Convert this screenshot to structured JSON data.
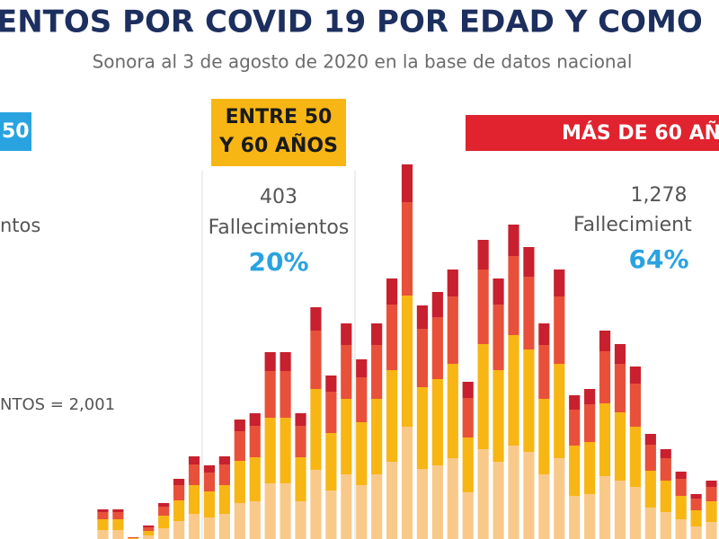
{
  "chart_data": {
    "type": "stacked_bar",
    "title": "ENTOS POR COVID 19 POR EDAD Y COMO",
    "subtitle": "Sonora al 3 de agosto de 2020 en la base de datos nacional",
    "annotations": {
      "left_box": "50",
      "middle_box": [
        "ENTRE 50",
        "Y 60 AÑOS"
      ],
      "right_box": "MÁS DE 60 AÑ",
      "left_label": "ntos",
      "total_label": "NTOS = 2,001",
      "middle_count": "403",
      "middle_label": "Fallecimientos",
      "middle_pct": "20%",
      "right_count": "1,278",
      "right_label": "Fallecimient",
      "right_pct": "64%"
    },
    "categories": [
      null,
      null,
      null,
      null,
      null,
      null,
      null,
      null,
      null,
      null,
      null,
      null,
      null,
      null,
      null,
      null,
      null,
      null,
      null,
      null,
      null,
      null,
      null,
      null,
      null,
      null,
      null,
      null,
      null,
      null,
      null,
      null,
      null,
      null,
      null,
      null,
      null,
      null,
      null,
      null,
      null
    ],
    "series": [
      {
        "color": "#f9c98a",
        "values": [
          10,
          10,
          0,
          4,
          12,
          20,
          28,
          24,
          28,
          40,
          42,
          62,
          62,
          42,
          77,
          54,
          72,
          60,
          72,
          86,
          125,
          78,
          82,
          90,
          52,
          100,
          86,
          104,
          97,
          72,
          90,
          48,
          50,
          70,
          65,
          58,
          35,
          30,
          22,
          14,
          19
        ]
      },
      {
        "color": "#f7b614",
        "values": [
          12,
          12,
          1,
          5,
          14,
          23,
          32,
          29,
          32,
          47,
          49,
          73,
          73,
          49,
          90,
          64,
          84,
          70,
          84,
          102,
          146,
          91,
          96,
          105,
          61,
          117,
          102,
          123,
          114,
          84,
          105,
          56,
          58,
          81,
          76,
          67,
          41,
          35,
          26,
          18,
          23
        ]
      },
      {
        "color": "#e8503a",
        "values": [
          8,
          8,
          1,
          4,
          10,
          17,
          23,
          21,
          23,
          33,
          35,
          52,
          52,
          35,
          65,
          46,
          60,
          50,
          60,
          73,
          104,
          65,
          69,
          75,
          44,
          83,
          73,
          88,
          81,
          60,
          75,
          40,
          42,
          58,
          54,
          48,
          29,
          25,
          19,
          13,
          16
        ]
      },
      {
        "color": "#c8202e",
        "values": [
          3,
          3,
          0,
          2,
          4,
          7,
          9,
          8,
          9,
          13,
          14,
          21,
          21,
          14,
          26,
          18,
          24,
          20,
          24,
          29,
          42,
          26,
          28,
          30,
          18,
          33,
          29,
          35,
          33,
          24,
          30,
          16,
          17,
          23,
          22,
          19,
          12,
          10,
          8,
          5,
          7
        ]
      }
    ]
  }
}
